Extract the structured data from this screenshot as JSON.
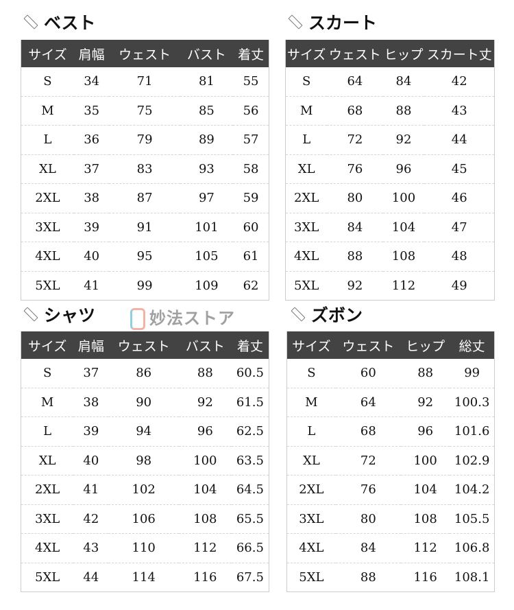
{
  "tables": [
    {
      "title": "ベスト",
      "headers": [
        "サイズ",
        "肩幅",
        "ウェスト",
        "バスト",
        "着丈"
      ],
      "rows": [
        [
          "S",
          "34",
          "71",
          "81",
          "55"
        ],
        [
          "M",
          "35",
          "75",
          "85",
          "56"
        ],
        [
          "L",
          "36",
          "79",
          "89",
          "57"
        ],
        [
          "XL",
          "37",
          "83",
          "93",
          "58"
        ],
        [
          "2XL",
          "38",
          "87",
          "97",
          "59"
        ],
        [
          "3XL",
          "39",
          "91",
          "101",
          "60"
        ],
        [
          "4XL",
          "40",
          "95",
          "105",
          "61"
        ],
        [
          "5XL",
          "41",
          "99",
          "109",
          "62"
        ]
      ]
    },
    {
      "title": "スカート",
      "headers": [
        "サイズ",
        "ウェスト",
        "ヒップ",
        "スカート丈"
      ],
      "rows": [
        [
          "S",
          "64",
          "84",
          "42"
        ],
        [
          "M",
          "68",
          "88",
          "43"
        ],
        [
          "L",
          "72",
          "92",
          "44"
        ],
        [
          "XL",
          "76",
          "96",
          "45"
        ],
        [
          "2XL",
          "80",
          "100",
          "46"
        ],
        [
          "3XL",
          "84",
          "104",
          "47"
        ],
        [
          "4XL",
          "88",
          "108",
          "48"
        ],
        [
          "5XL",
          "92",
          "112",
          "49"
        ]
      ]
    },
    {
      "title": "シャツ",
      "headers": [
        "サイズ",
        "肩幅",
        "ウェスト",
        "バスト",
        "着丈"
      ],
      "rows": [
        [
          "S",
          "37",
          "86",
          "88",
          "60.5"
        ],
        [
          "M",
          "38",
          "90",
          "92",
          "61.5"
        ],
        [
          "L",
          "39",
          "94",
          "96",
          "62.5"
        ],
        [
          "XL",
          "40",
          "98",
          "100",
          "63.5"
        ],
        [
          "2XL",
          "41",
          "102",
          "104",
          "64.5"
        ],
        [
          "3XL",
          "42",
          "106",
          "108",
          "65.5"
        ],
        [
          "4XL",
          "43",
          "110",
          "112",
          "66.5"
        ],
        [
          "5XL",
          "44",
          "114",
          "116",
          "67.5"
        ]
      ]
    },
    {
      "title": "ズボン",
      "headers": [
        "サイズ",
        "ウェスト",
        "ヒップ",
        "総丈"
      ],
      "rows": [
        [
          "S",
          "60",
          "88",
          "99"
        ],
        [
          "M",
          "64",
          "92",
          "100.3"
        ],
        [
          "L",
          "68",
          "96",
          "101.6"
        ],
        [
          "XL",
          "72",
          "100",
          "102.9"
        ],
        [
          "2XL",
          "76",
          "104",
          "104.2"
        ],
        [
          "3XL",
          "80",
          "108",
          "105.5"
        ],
        [
          "4XL",
          "84",
          "112",
          "106.8"
        ],
        [
          "5XL",
          "88",
          "116",
          "108.1"
        ]
      ]
    }
  ],
  "watermark": "妙法ストア",
  "colors": {
    "header_bg": "#434343",
    "header_text": "#ffffff"
  }
}
